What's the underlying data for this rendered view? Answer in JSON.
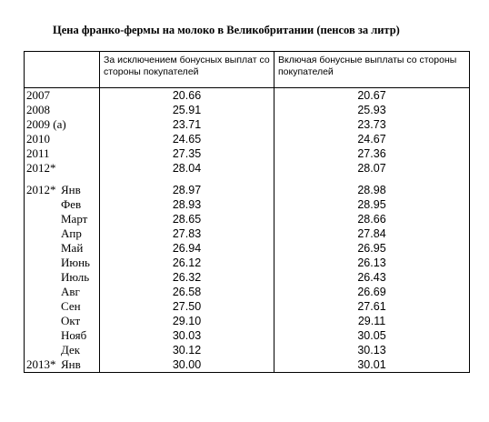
{
  "title": "Цена франко-фермы на молоко в Великобритании (пенсов за литр)",
  "headers": {
    "col1": "За исключением бонусных выплат со стороны покупателей",
    "col2": "Включая бонусные выплаты со стороны покупателей"
  },
  "annual": [
    {
      "year": "2007",
      "excl": "20.66",
      "incl": "20.67"
    },
    {
      "year": "2008",
      "excl": "25.91",
      "incl": "25.93"
    },
    {
      "year": "2009 (a)",
      "excl": "23.71",
      "incl": "23.73"
    },
    {
      "year": "2010",
      "excl": "24.65",
      "incl": "24.67"
    },
    {
      "year": "2011",
      "excl": "27.35",
      "incl": "27.36"
    },
    {
      "year": "2012*",
      "excl": "28.04",
      "incl": "28.07"
    }
  ],
  "monthly": [
    {
      "year": "2012*",
      "month": "Янв",
      "excl": "28.97",
      "incl": "28.98"
    },
    {
      "year": "",
      "month": "Фев",
      "excl": "28.93",
      "incl": "28.95"
    },
    {
      "year": "",
      "month": "Март",
      "excl": "28.65",
      "incl": "28.66"
    },
    {
      "year": "",
      "month": "Апр",
      "excl": "27.83",
      "incl": "27.84"
    },
    {
      "year": "",
      "month": "Май",
      "excl": "26.94",
      "incl": "26.95"
    },
    {
      "year": "",
      "month": "Июнь",
      "excl": "26.12",
      "incl": "26.13"
    },
    {
      "year": "",
      "month": "Июль",
      "excl": "26.32",
      "incl": "26.43"
    },
    {
      "year": "",
      "month": "Авг",
      "excl": "26.58",
      "incl": "26.69"
    },
    {
      "year": "",
      "month": "Сен",
      "excl": "27.50",
      "incl": "27.61"
    },
    {
      "year": "",
      "month": "Окт",
      "excl": "29.10",
      "incl": "29.11"
    },
    {
      "year": "",
      "month": "Нояб",
      "excl": "30.03",
      "incl": "30.05"
    },
    {
      "year": "",
      "month": "Дек",
      "excl": "30.12",
      "incl": "30.13"
    },
    {
      "year": "2013*",
      "month": "Янв",
      "excl": "30.00",
      "incl": "30.01"
    }
  ]
}
